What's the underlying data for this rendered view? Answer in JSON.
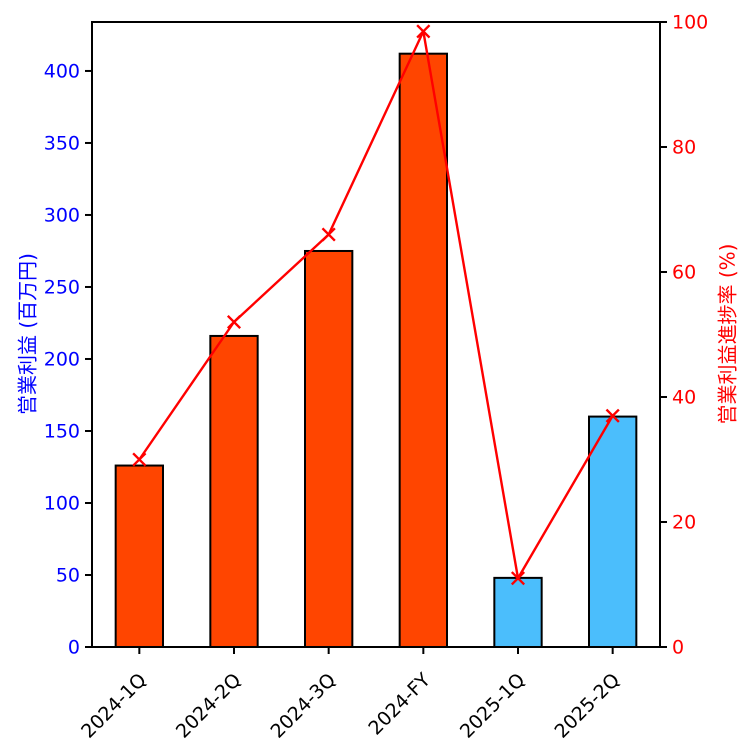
{
  "chart_data": {
    "type": "bar",
    "categories": [
      "2024-1Q",
      "2024-2Q",
      "2024-3Q",
      "2024-FY",
      "2025-1Q",
      "2025-2Q"
    ],
    "series": [
      {
        "name": "営業利益",
        "type": "bar",
        "axis": "left",
        "values": [
          126,
          216,
          275,
          412,
          48,
          160
        ],
        "colors": [
          "#FF4500",
          "#FF4500",
          "#FF4500",
          "#FF4500",
          "#4BBEFC",
          "#4BBEFC"
        ],
        "edge_color": "#000000"
      },
      {
        "name": "営業利益進捗率",
        "type": "line",
        "axis": "right",
        "values": [
          30,
          52,
          66,
          98.5,
          11,
          37
        ],
        "color": "#FF0000",
        "marker": "x"
      }
    ],
    "left_axis": {
      "label": "営業利益 (百万円)",
      "color": "#0000FF",
      "ticks": [
        0,
        50,
        100,
        150,
        200,
        250,
        300,
        350,
        400
      ],
      "range": [
        0,
        434
      ]
    },
    "right_axis": {
      "label": "営業利益進捗率 (%)",
      "color": "#FF0000",
      "ticks": [
        0,
        20,
        40,
        60,
        80,
        100
      ],
      "range": [
        0,
        100
      ]
    },
    "x_axis": {
      "tick_label_rotation_deg": 45,
      "tick_color": "#000000",
      "label_color": "#000000"
    },
    "grid": false,
    "background": "#FFFFFF"
  }
}
